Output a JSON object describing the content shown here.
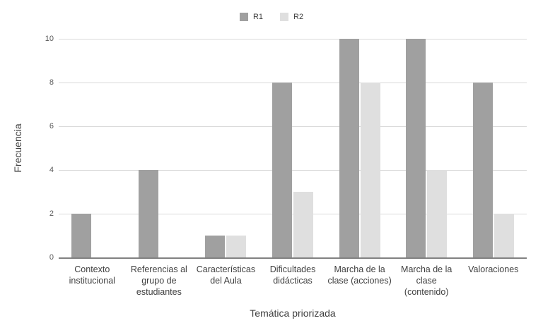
{
  "chart_data": {
    "type": "bar",
    "title": "",
    "xlabel": "Temática priorizada",
    "ylabel": "Frecuencia",
    "categories": [
      "Contexto institucional",
      "Referencias al grupo de estudiantes",
      "Características del Aula",
      "Dificultades didácticas",
      "Marcha de la clase (acciones)",
      "Marcha de la clase (contenido)",
      "Valoraciones"
    ],
    "series": [
      {
        "name": "R1",
        "color": "#a0a0a0",
        "values": [
          2,
          4,
          1,
          8,
          10,
          10,
          8
        ]
      },
      {
        "name": "R2",
        "color": "#dfdfdf",
        "values": [
          0,
          0,
          1,
          3,
          8,
          4,
          2
        ]
      }
    ],
    "y_ticks": [
      0,
      2,
      4,
      6,
      8,
      10
    ],
    "ylim": [
      0,
      10
    ],
    "grid": "horizontal",
    "legend_position": "top-center",
    "colors": {
      "gridline": "#d9d9d9",
      "axis_line": "#818181",
      "tick_label": "#595959",
      "category_label": "#404040",
      "axis_title": "#404040"
    }
  }
}
